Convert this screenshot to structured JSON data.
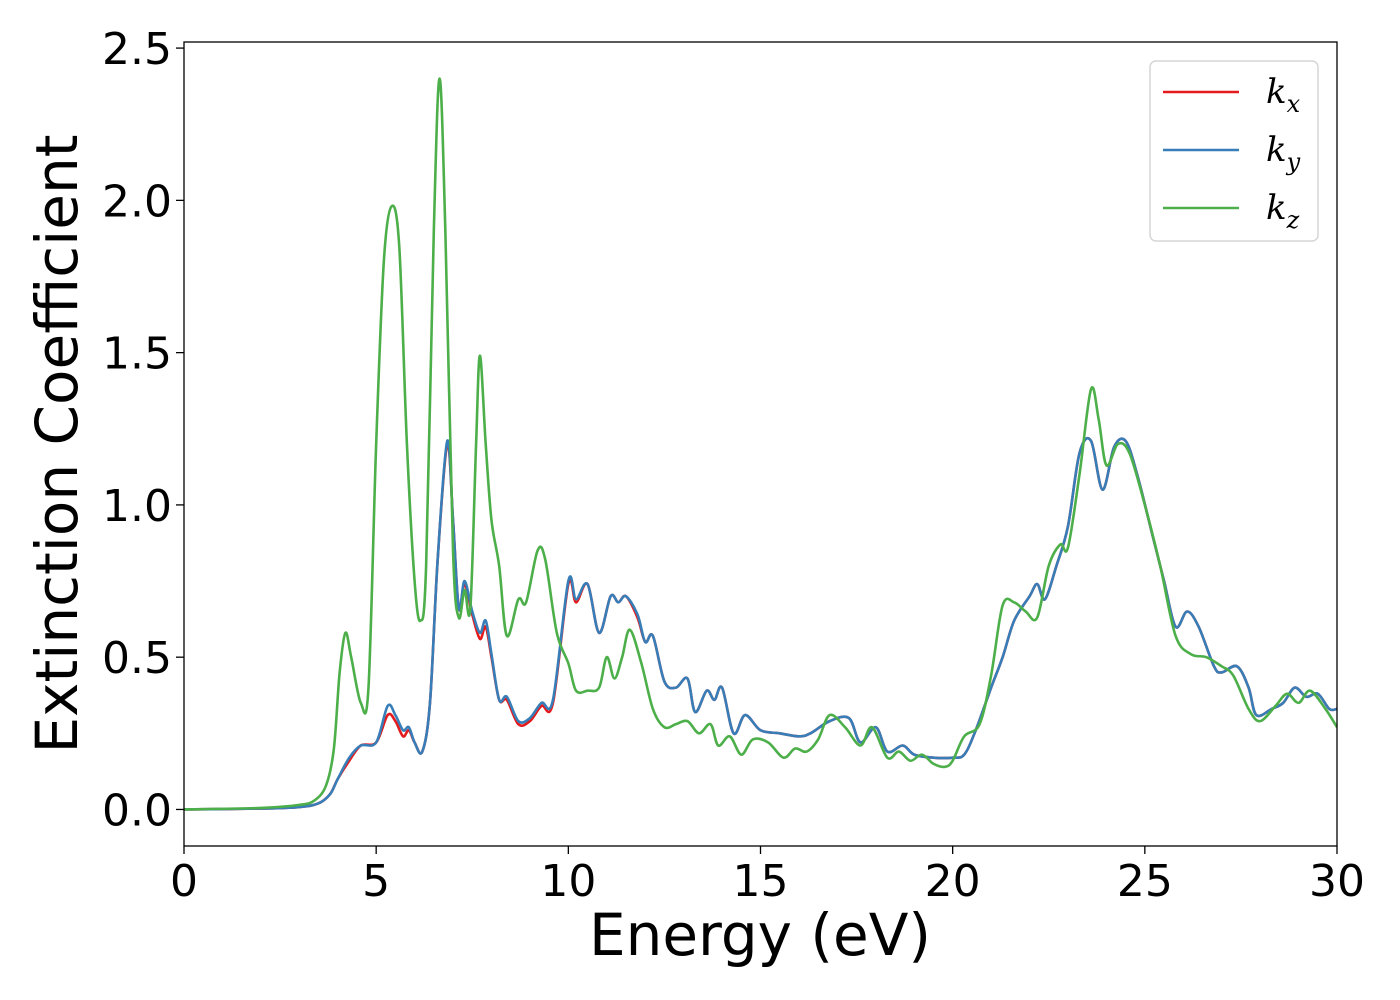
{
  "chart_data": {
    "type": "line",
    "title": "",
    "xlabel": "Energy (eV)",
    "ylabel": "Extinction Coefficient",
    "xlim": [
      0,
      30
    ],
    "ylim": [
      -0.12,
      2.52
    ],
    "xticks": [
      0,
      5,
      10,
      15,
      20,
      25,
      30
    ],
    "xtick_labels": [
      "0",
      "5",
      "10",
      "15",
      "20",
      "25",
      "30"
    ],
    "yticks": [
      0.0,
      0.5,
      1.0,
      1.5,
      2.0,
      2.5
    ],
    "ytick_labels": [
      "0.0",
      "0.5",
      "1.0",
      "1.5",
      "2.0",
      "2.5"
    ],
    "grid": false,
    "legend": {
      "position": "top-right"
    },
    "series": [
      {
        "name": "k_x",
        "label_base": "k",
        "label_sub": "x",
        "color": "#e41a1c",
        "points": [
          [
            0,
            0
          ],
          [
            2,
            0.003
          ],
          [
            3,
            0.008
          ],
          [
            3.5,
            0.02
          ],
          [
            3.8,
            0.05
          ],
          [
            4.0,
            0.1
          ],
          [
            4.3,
            0.16
          ],
          [
            4.6,
            0.21
          ],
          [
            5.0,
            0.22
          ],
          [
            5.3,
            0.31
          ],
          [
            5.5,
            0.29
          ],
          [
            5.7,
            0.24
          ],
          [
            5.85,
            0.26
          ],
          [
            6.0,
            0.22
          ],
          [
            6.2,
            0.19
          ],
          [
            6.4,
            0.35
          ],
          [
            6.6,
            0.82
          ],
          [
            6.85,
            1.2
          ],
          [
            7.0,
            0.95
          ],
          [
            7.15,
            0.66
          ],
          [
            7.3,
            0.74
          ],
          [
            7.5,
            0.64
          ],
          [
            7.7,
            0.56
          ],
          [
            7.85,
            0.6
          ],
          [
            8.0,
            0.5
          ],
          [
            8.2,
            0.36
          ],
          [
            8.4,
            0.36
          ],
          [
            8.7,
            0.28
          ],
          [
            9.0,
            0.29
          ],
          [
            9.3,
            0.34
          ],
          [
            9.6,
            0.35
          ],
          [
            10.0,
            0.74
          ],
          [
            10.2,
            0.68
          ],
          [
            10.5,
            0.74
          ],
          [
            10.8,
            0.58
          ],
          [
            11.1,
            0.7
          ],
          [
            11.3,
            0.68
          ],
          [
            11.5,
            0.7
          ],
          [
            11.8,
            0.63
          ],
          [
            12.0,
            0.55
          ],
          [
            12.2,
            0.57
          ],
          [
            12.5,
            0.42
          ],
          [
            12.8,
            0.4
          ],
          [
            13.1,
            0.43
          ],
          [
            13.3,
            0.32
          ],
          [
            13.6,
            0.39
          ],
          [
            13.8,
            0.36
          ],
          [
            14.0,
            0.4
          ],
          [
            14.3,
            0.25
          ],
          [
            14.6,
            0.31
          ],
          [
            15.0,
            0.26
          ],
          [
            15.5,
            0.25
          ],
          [
            16.0,
            0.24
          ],
          [
            16.3,
            0.25
          ],
          [
            16.8,
            0.29
          ],
          [
            17.3,
            0.3
          ],
          [
            17.6,
            0.22
          ],
          [
            18.0,
            0.27
          ],
          [
            18.3,
            0.19
          ],
          [
            18.7,
            0.21
          ],
          [
            19.0,
            0.18
          ],
          [
            19.5,
            0.17
          ],
          [
            20.0,
            0.17
          ],
          [
            20.3,
            0.18
          ],
          [
            20.6,
            0.26
          ],
          [
            21.0,
            0.4
          ],
          [
            21.3,
            0.5
          ],
          [
            21.6,
            0.62
          ],
          [
            22.0,
            0.7
          ],
          [
            22.2,
            0.74
          ],
          [
            22.4,
            0.69
          ],
          [
            22.7,
            0.8
          ],
          [
            23.0,
            0.93
          ],
          [
            23.3,
            1.17
          ],
          [
            23.6,
            1.21
          ],
          [
            23.9,
            1.05
          ],
          [
            24.2,
            1.19
          ],
          [
            24.5,
            1.21
          ],
          [
            24.8,
            1.1
          ],
          [
            25.2,
            0.9
          ],
          [
            25.5,
            0.75
          ],
          [
            25.8,
            0.6
          ],
          [
            26.1,
            0.65
          ],
          [
            26.4,
            0.6
          ],
          [
            26.8,
            0.47
          ],
          [
            27.0,
            0.45
          ],
          [
            27.4,
            0.47
          ],
          [
            27.7,
            0.4
          ],
          [
            27.9,
            0.31
          ],
          [
            28.3,
            0.33
          ],
          [
            28.6,
            0.35
          ],
          [
            28.9,
            0.4
          ],
          [
            29.2,
            0.37
          ],
          [
            29.5,
            0.38
          ],
          [
            29.8,
            0.33
          ],
          [
            30,
            0.33
          ]
        ]
      },
      {
        "name": "k_y",
        "label_base": "k",
        "label_sub": "y",
        "color": "#377eb8",
        "points": [
          [
            0,
            0
          ],
          [
            2,
            0.003
          ],
          [
            3,
            0.008
          ],
          [
            3.5,
            0.02
          ],
          [
            3.8,
            0.05
          ],
          [
            4.0,
            0.1
          ],
          [
            4.3,
            0.17
          ],
          [
            4.6,
            0.21
          ],
          [
            5.0,
            0.22
          ],
          [
            5.3,
            0.34
          ],
          [
            5.5,
            0.31
          ],
          [
            5.7,
            0.26
          ],
          [
            5.85,
            0.27
          ],
          [
            6.0,
            0.22
          ],
          [
            6.2,
            0.19
          ],
          [
            6.4,
            0.35
          ],
          [
            6.6,
            0.82
          ],
          [
            6.85,
            1.21
          ],
          [
            7.0,
            0.95
          ],
          [
            7.15,
            0.66
          ],
          [
            7.3,
            0.75
          ],
          [
            7.5,
            0.65
          ],
          [
            7.7,
            0.58
          ],
          [
            7.85,
            0.62
          ],
          [
            8.0,
            0.51
          ],
          [
            8.2,
            0.36
          ],
          [
            8.4,
            0.37
          ],
          [
            8.7,
            0.29
          ],
          [
            9.0,
            0.3
          ],
          [
            9.3,
            0.35
          ],
          [
            9.6,
            0.36
          ],
          [
            10.0,
            0.75
          ],
          [
            10.2,
            0.69
          ],
          [
            10.5,
            0.74
          ],
          [
            10.8,
            0.58
          ],
          [
            11.1,
            0.7
          ],
          [
            11.3,
            0.68
          ],
          [
            11.5,
            0.7
          ],
          [
            11.8,
            0.64
          ],
          [
            12.0,
            0.55
          ],
          [
            12.2,
            0.57
          ],
          [
            12.5,
            0.42
          ],
          [
            12.8,
            0.4
          ],
          [
            13.1,
            0.43
          ],
          [
            13.3,
            0.32
          ],
          [
            13.6,
            0.39
          ],
          [
            13.8,
            0.36
          ],
          [
            14.0,
            0.4
          ],
          [
            14.3,
            0.25
          ],
          [
            14.6,
            0.31
          ],
          [
            15.0,
            0.26
          ],
          [
            15.5,
            0.25
          ],
          [
            16.0,
            0.24
          ],
          [
            16.3,
            0.25
          ],
          [
            16.8,
            0.29
          ],
          [
            17.3,
            0.3
          ],
          [
            17.6,
            0.22
          ],
          [
            18.0,
            0.27
          ],
          [
            18.3,
            0.19
          ],
          [
            18.7,
            0.21
          ],
          [
            19.0,
            0.18
          ],
          [
            19.5,
            0.17
          ],
          [
            20.0,
            0.17
          ],
          [
            20.3,
            0.18
          ],
          [
            20.6,
            0.26
          ],
          [
            21.0,
            0.4
          ],
          [
            21.3,
            0.5
          ],
          [
            21.6,
            0.62
          ],
          [
            22.0,
            0.7
          ],
          [
            22.2,
            0.74
          ],
          [
            22.4,
            0.69
          ],
          [
            22.7,
            0.8
          ],
          [
            23.0,
            0.93
          ],
          [
            23.3,
            1.17
          ],
          [
            23.6,
            1.21
          ],
          [
            23.9,
            1.05
          ],
          [
            24.2,
            1.19
          ],
          [
            24.5,
            1.21
          ],
          [
            24.8,
            1.1
          ],
          [
            25.2,
            0.9
          ],
          [
            25.5,
            0.75
          ],
          [
            25.8,
            0.6
          ],
          [
            26.1,
            0.65
          ],
          [
            26.4,
            0.6
          ],
          [
            26.8,
            0.47
          ],
          [
            27.0,
            0.45
          ],
          [
            27.4,
            0.47
          ],
          [
            27.7,
            0.4
          ],
          [
            27.9,
            0.31
          ],
          [
            28.3,
            0.33
          ],
          [
            28.6,
            0.35
          ],
          [
            28.9,
            0.4
          ],
          [
            29.2,
            0.37
          ],
          [
            29.5,
            0.38
          ],
          [
            29.8,
            0.33
          ],
          [
            30,
            0.33
          ]
        ]
      },
      {
        "name": "k_z",
        "label_base": "k",
        "label_sub": "z",
        "color": "#4daf4a",
        "points": [
          [
            0,
            0
          ],
          [
            2,
            0.005
          ],
          [
            3,
            0.015
          ],
          [
            3.4,
            0.03
          ],
          [
            3.7,
            0.08
          ],
          [
            3.9,
            0.2
          ],
          [
            4.05,
            0.45
          ],
          [
            4.2,
            0.58
          ],
          [
            4.35,
            0.5
          ],
          [
            4.6,
            0.35
          ],
          [
            4.8,
            0.4
          ],
          [
            5.0,
            1.2
          ],
          [
            5.2,
            1.8
          ],
          [
            5.4,
            1.98
          ],
          [
            5.6,
            1.85
          ],
          [
            5.8,
            1.2
          ],
          [
            6.0,
            0.75
          ],
          [
            6.15,
            0.62
          ],
          [
            6.3,
            0.8
          ],
          [
            6.5,
            1.9
          ],
          [
            6.65,
            2.4
          ],
          [
            6.8,
            1.9
          ],
          [
            7.0,
            0.85
          ],
          [
            7.15,
            0.63
          ],
          [
            7.3,
            0.72
          ],
          [
            7.45,
            0.66
          ],
          [
            7.6,
            1.2
          ],
          [
            7.7,
            1.49
          ],
          [
            7.85,
            1.2
          ],
          [
            8.0,
            0.95
          ],
          [
            8.2,
            0.8
          ],
          [
            8.4,
            0.57
          ],
          [
            8.7,
            0.69
          ],
          [
            8.9,
            0.68
          ],
          [
            9.2,
            0.85
          ],
          [
            9.4,
            0.82
          ],
          [
            9.7,
            0.58
          ],
          [
            10.0,
            0.48
          ],
          [
            10.2,
            0.39
          ],
          [
            10.5,
            0.39
          ],
          [
            10.8,
            0.4
          ],
          [
            11.0,
            0.5
          ],
          [
            11.2,
            0.43
          ],
          [
            11.4,
            0.5
          ],
          [
            11.6,
            0.59
          ],
          [
            11.9,
            0.48
          ],
          [
            12.2,
            0.33
          ],
          [
            12.5,
            0.27
          ],
          [
            12.8,
            0.28
          ],
          [
            13.1,
            0.29
          ],
          [
            13.4,
            0.25
          ],
          [
            13.7,
            0.28
          ],
          [
            13.9,
            0.21
          ],
          [
            14.2,
            0.24
          ],
          [
            14.5,
            0.18
          ],
          [
            14.8,
            0.23
          ],
          [
            15.2,
            0.22
          ],
          [
            15.6,
            0.17
          ],
          [
            15.9,
            0.2
          ],
          [
            16.2,
            0.19
          ],
          [
            16.5,
            0.23
          ],
          [
            16.8,
            0.31
          ],
          [
            17.2,
            0.27
          ],
          [
            17.6,
            0.21
          ],
          [
            17.9,
            0.27
          ],
          [
            18.3,
            0.17
          ],
          [
            18.6,
            0.19
          ],
          [
            18.9,
            0.16
          ],
          [
            19.2,
            0.18
          ],
          [
            19.5,
            0.15
          ],
          [
            19.8,
            0.14
          ],
          [
            20.0,
            0.16
          ],
          [
            20.3,
            0.24
          ],
          [
            20.7,
            0.28
          ],
          [
            21.0,
            0.44
          ],
          [
            21.3,
            0.67
          ],
          [
            21.6,
            0.68
          ],
          [
            21.9,
            0.65
          ],
          [
            22.2,
            0.63
          ],
          [
            22.5,
            0.8
          ],
          [
            22.8,
            0.87
          ],
          [
            23.0,
            0.86
          ],
          [
            23.3,
            1.1
          ],
          [
            23.6,
            1.38
          ],
          [
            23.8,
            1.28
          ],
          [
            24.0,
            1.13
          ],
          [
            24.3,
            1.2
          ],
          [
            24.6,
            1.17
          ],
          [
            25.0,
            1.0
          ],
          [
            25.4,
            0.8
          ],
          [
            25.8,
            0.57
          ],
          [
            26.2,
            0.51
          ],
          [
            26.6,
            0.5
          ],
          [
            27.0,
            0.47
          ],
          [
            27.3,
            0.44
          ],
          [
            27.7,
            0.33
          ],
          [
            28.0,
            0.29
          ],
          [
            28.4,
            0.34
          ],
          [
            28.7,
            0.38
          ],
          [
            29.0,
            0.35
          ],
          [
            29.3,
            0.39
          ],
          [
            29.7,
            0.33
          ],
          [
            30,
            0.27
          ]
        ]
      }
    ]
  }
}
